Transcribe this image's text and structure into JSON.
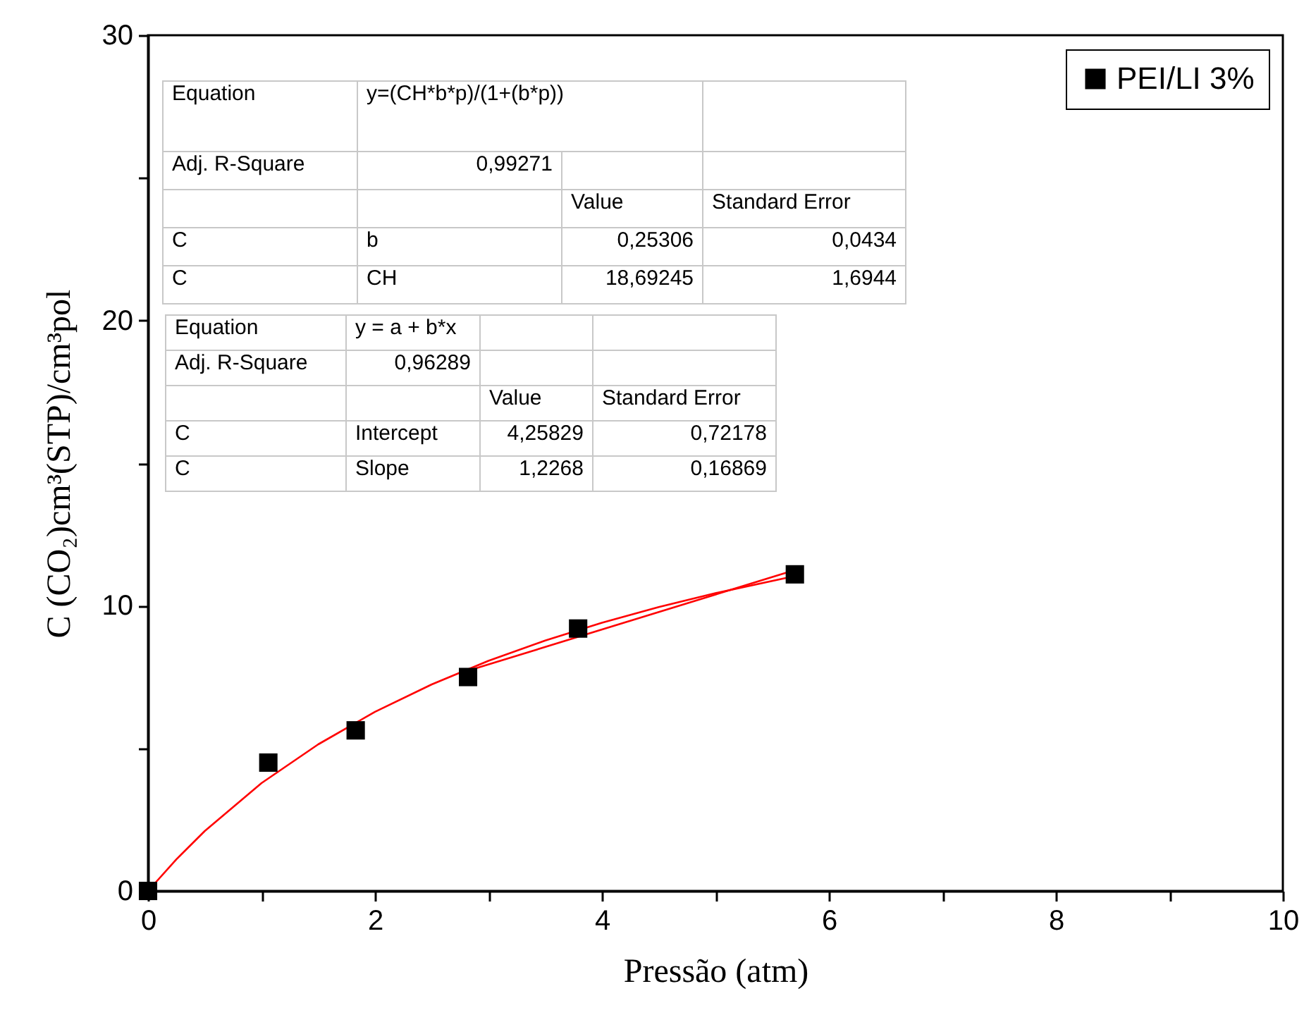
{
  "chart_data": {
    "type": "scatter",
    "xlabel": "Pressão (atm)",
    "ylabel": "C (CO₂)cm³(STP)/cm³pol",
    "xlim": [
      0,
      10
    ],
    "ylim": [
      0,
      30
    ],
    "xticks": [
      0,
      {
        "value": 1,
        "label": null
      },
      2,
      {
        "value": 3,
        "label": null
      },
      4,
      {
        "value": 5,
        "label": null
      },
      6,
      {
        "value": 7,
        "label": null
      },
      8,
      {
        "value": 9,
        "label": null
      },
      10
    ],
    "yticks": [
      0,
      {
        "value": 5,
        "label": null
      },
      10,
      {
        "value": 15,
        "label": null
      },
      20,
      {
        "value": 25,
        "label": null
      },
      30
    ],
    "grid": false,
    "legend": "top right",
    "series": [
      {
        "type": "line",
        "color": "#ff0000",
        "line_style": "solid",
        "marker": "none",
        "x": [
          0,
          0.25,
          0.5,
          1,
          1.5,
          2,
          2.5,
          3,
          3.5,
          4,
          4.5,
          5,
          5.7
        ],
        "values": [
          0,
          1.11,
          2.1,
          3.78,
          5.14,
          6.28,
          7.24,
          8.07,
          8.78,
          9.4,
          9.95,
          10.44,
          11.04
        ]
      },
      {
        "type": "line",
        "color": "#ff0000",
        "line_style": "solid",
        "marker": "none",
        "x": [
          2.82,
          5.7
        ],
        "values": [
          7.72,
          11.25
        ]
      },
      {
        "type": "scatter",
        "name": "PEI/LI 3%",
        "color": "#000000",
        "marker": "square",
        "x": [
          0,
          1.06,
          1.83,
          2.82,
          3.79,
          5.7
        ],
        "values": [
          0,
          4.5,
          5.63,
          7.5,
          9.2,
          11.1
        ]
      }
    ],
    "annotations": [
      "Equation",
      "y=(CH*b*p)/(1+(b*p))",
      "Adj. R-Square",
      "0,99271",
      "Value",
      "Standard Error",
      "C",
      "b",
      "0,25306",
      "0,0434",
      "C",
      "CH",
      "18,69245",
      "1,6944",
      "Equation",
      "y = a + b*x",
      "Adj. R-Square",
      "0,96289",
      "Value",
      "Standard Error",
      "C",
      "Intercept",
      "4,25829",
      "0,72178",
      "C",
      "Slope",
      "1,2268",
      "0,16869"
    ]
  }
}
